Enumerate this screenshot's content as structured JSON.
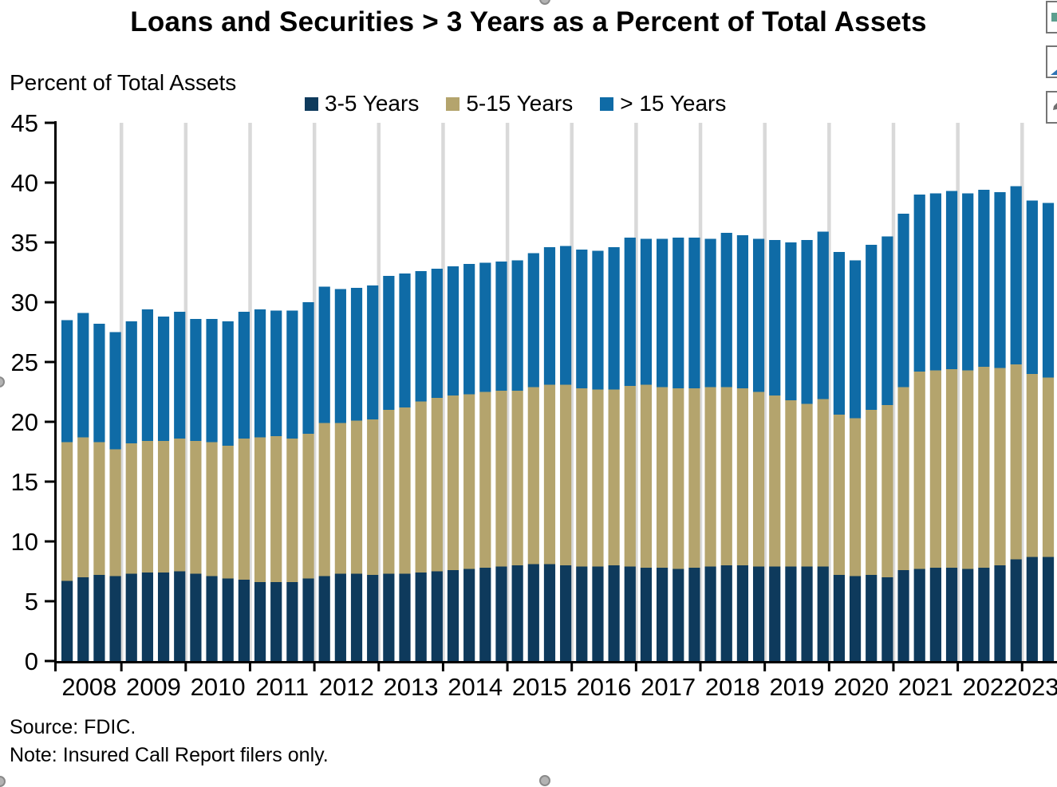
{
  "header": {
    "title": "Loans and Securities > 3 Years as a Percent of Total Assets"
  },
  "footer": {
    "source": "Source: FDIC.",
    "note": "Note: Insured Call Report filers only."
  },
  "colors": {
    "background": "#FFFFFF",
    "axis": "#000000",
    "gridline": "#D9D9D9",
    "text": "#000000",
    "handle": "#B3B3B3"
  },
  "toolbar": {
    "buttons": [
      {
        "name": "table-button",
        "glyph": "green-square",
        "glyph_color": "#5C9E8E"
      },
      {
        "name": "chart-button",
        "glyph": "blue-triangle",
        "glyph_color": "#2E74B5"
      },
      {
        "name": "pencil-button",
        "glyph": "gray-pencil",
        "glyph_color": "#6F6F6F"
      }
    ]
  },
  "chart_data": {
    "type": "bar",
    "stacked": true,
    "title": "Loans and Securities > 3 Years as a Percent of Total Assets",
    "xlabel": "",
    "ylabel": "Percent of Total Assets",
    "ylim": [
      0,
      45
    ],
    "y_ticks": [
      0,
      5,
      10,
      15,
      20,
      25,
      30,
      35,
      40,
      45
    ],
    "grid": "vertical-year-separators",
    "legend_position": "top-center",
    "x_year_labels": [
      "2008",
      "2009",
      "2010",
      "2011",
      "2012",
      "2013",
      "2014",
      "2015",
      "2016",
      "2017",
      "2018",
      "2019",
      "2020",
      "2021",
      "2022",
      "2023"
    ],
    "quarters": [
      "2008Q1",
      "2008Q2",
      "2008Q3",
      "2008Q4",
      "2009Q1",
      "2009Q2",
      "2009Q3",
      "2009Q4",
      "2010Q1",
      "2010Q2",
      "2010Q3",
      "2010Q4",
      "2011Q1",
      "2011Q2",
      "2011Q3",
      "2011Q4",
      "2012Q1",
      "2012Q2",
      "2012Q3",
      "2012Q4",
      "2013Q1",
      "2013Q2",
      "2013Q3",
      "2013Q4",
      "2014Q1",
      "2014Q2",
      "2014Q3",
      "2014Q4",
      "2015Q1",
      "2015Q2",
      "2015Q3",
      "2015Q4",
      "2016Q1",
      "2016Q2",
      "2016Q3",
      "2016Q4",
      "2017Q1",
      "2017Q2",
      "2017Q3",
      "2017Q4",
      "2018Q1",
      "2018Q2",
      "2018Q3",
      "2018Q4",
      "2019Q1",
      "2019Q2",
      "2019Q3",
      "2019Q4",
      "2020Q1",
      "2020Q2",
      "2020Q3",
      "2020Q4",
      "2021Q1",
      "2021Q2",
      "2021Q3",
      "2021Q4",
      "2022Q1",
      "2022Q2",
      "2022Q3",
      "2022Q4",
      "2023Q1",
      "2023Q2"
    ],
    "series": [
      {
        "name": "3-5 Years",
        "color": "#0E3A5C",
        "values": [
          6.7,
          7.0,
          7.2,
          7.1,
          7.3,
          7.4,
          7.4,
          7.5,
          7.3,
          7.1,
          6.9,
          6.8,
          6.6,
          6.6,
          6.6,
          6.9,
          7.1,
          7.3,
          7.3,
          7.2,
          7.3,
          7.3,
          7.4,
          7.5,
          7.6,
          7.7,
          7.8,
          7.9,
          8.0,
          8.1,
          8.1,
          8.0,
          7.9,
          7.9,
          8.0,
          7.9,
          7.8,
          7.8,
          7.7,
          7.8,
          7.9,
          8.0,
          8.0,
          7.9,
          7.9,
          7.9,
          7.9,
          7.9,
          7.2,
          7.1,
          7.2,
          7.0,
          7.6,
          7.7,
          7.8,
          7.8,
          7.7,
          7.8,
          8.0,
          8.5,
          8.7,
          8.7
        ]
      },
      {
        "name": "5-15 Years",
        "color": "#B4A46D",
        "values": [
          11.6,
          11.7,
          11.1,
          10.6,
          10.9,
          11.0,
          11.0,
          11.1,
          11.1,
          11.2,
          11.1,
          11.8,
          12.1,
          12.2,
          12.0,
          12.1,
          12.8,
          12.6,
          12.8,
          13.0,
          13.7,
          13.9,
          14.3,
          14.5,
          14.6,
          14.6,
          14.7,
          14.7,
          14.6,
          14.8,
          15.0,
          15.1,
          14.9,
          14.8,
          14.7,
          15.1,
          15.3,
          15.1,
          15.1,
          15.0,
          15.0,
          14.9,
          14.8,
          14.6,
          14.3,
          13.9,
          13.6,
          14.0,
          13.4,
          13.2,
          13.8,
          14.4,
          15.3,
          16.5,
          16.5,
          16.6,
          16.6,
          16.8,
          16.5,
          16.3,
          15.3,
          15.0
        ]
      },
      {
        "name": "> 15 Years",
        "color": "#0F6BA6",
        "values": [
          10.2,
          10.4,
          9.9,
          9.8,
          10.2,
          11.0,
          10.4,
          10.6,
          10.2,
          10.3,
          10.4,
          10.6,
          10.7,
          10.5,
          10.7,
          11.0,
          11.4,
          11.2,
          11.1,
          11.2,
          11.2,
          11.2,
          10.9,
          10.8,
          10.8,
          10.9,
          10.8,
          10.8,
          10.9,
          11.2,
          11.5,
          11.6,
          11.6,
          11.6,
          11.9,
          12.4,
          12.2,
          12.4,
          12.6,
          12.6,
          12.4,
          12.9,
          12.8,
          12.8,
          13.0,
          13.2,
          13.7,
          14.0,
          13.6,
          13.2,
          13.8,
          14.1,
          14.5,
          14.8,
          14.8,
          14.9,
          14.8,
          14.8,
          14.7,
          14.9,
          14.5,
          14.6
        ]
      }
    ]
  }
}
